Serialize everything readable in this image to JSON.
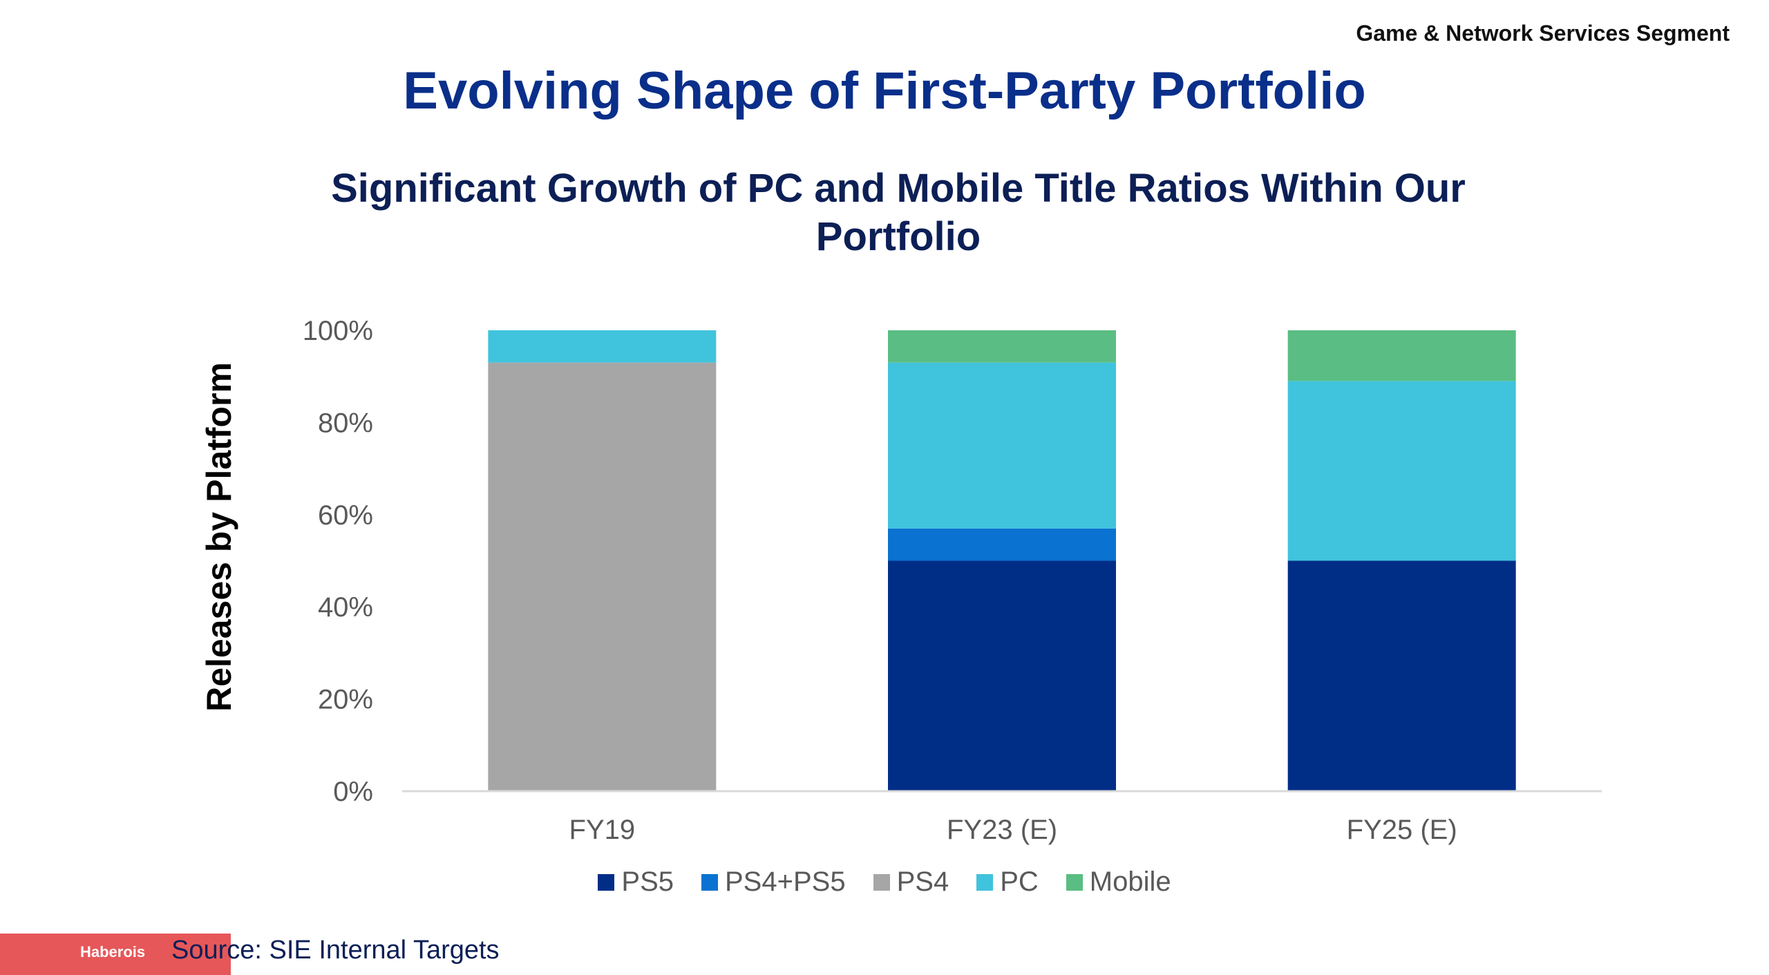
{
  "header": {
    "segment": "Game & Network Services Segment",
    "title": "Evolving Shape of First-Party Portfolio"
  },
  "watermark": "Haberois",
  "footer": {
    "source": "Source: SIE Internal Targets"
  },
  "chart_data": {
    "type": "bar",
    "stacked": true,
    "title": "Significant Growth of PC and Mobile Title Ratios Within Our Portfolio",
    "xlabel": "",
    "ylabel": "Releases by Platform",
    "categories": [
      "FY19",
      "FY23 (E)",
      "FY25 (E)"
    ],
    "ylim": [
      0,
      100
    ],
    "yticks": [
      0,
      20,
      40,
      60,
      80,
      100
    ],
    "ytick_labels": [
      "0%",
      "20%",
      "40%",
      "60%",
      "80%",
      "100%"
    ],
    "grid": false,
    "legend_position": "bottom",
    "series": [
      {
        "name": "PS5",
        "color": "#002e87",
        "values": [
          0,
          50,
          50
        ]
      },
      {
        "name": "PS4+PS5",
        "color": "#0a72d0",
        "values": [
          0,
          7,
          0
        ]
      },
      {
        "name": "PS4",
        "color": "#a6a6a6",
        "values": [
          93,
          0,
          0
        ]
      },
      {
        "name": "PC",
        "color": "#40c3dd",
        "values": [
          7,
          36,
          39
        ]
      },
      {
        "name": "Mobile",
        "color": "#5abd83",
        "values": [
          0,
          7,
          11
        ]
      }
    ]
  }
}
